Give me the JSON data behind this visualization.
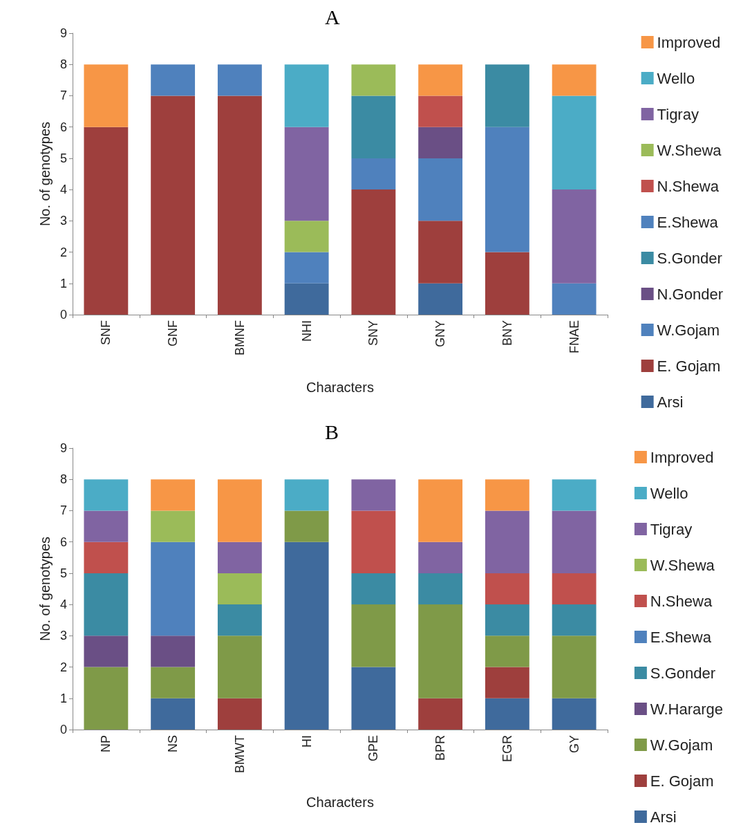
{
  "chart_data": [
    {
      "type": "bar",
      "title": "A",
      "xlabel": "Characters",
      "ylabel": "No. of genotypes",
      "stacked": true,
      "legend": "right",
      "grid": false,
      "ylim": [
        0,
        9
      ],
      "yticks": [
        0,
        1,
        2,
        3,
        4,
        5,
        6,
        7,
        8,
        9
      ],
      "categories": [
        "SNF",
        "GNF",
        "BMNF",
        "NHI",
        "SNY",
        "GNY",
        "BNY",
        "FNAE"
      ],
      "series": [
        {
          "name": "Arsi",
          "color": "#3f6a9c",
          "values": [
            0,
            0,
            0,
            1,
            0,
            1,
            0,
            0
          ]
        },
        {
          "name": "E. Gojam",
          "color": "#9e3f3d",
          "values": [
            6,
            7,
            7,
            0,
            4,
            2,
            2,
            0
          ]
        },
        {
          "name": "W.Gojam",
          "color": "#4f81bd",
          "values": [
            0,
            1,
            1,
            1,
            1,
            2,
            4,
            1
          ]
        },
        {
          "name": "N.Gonder",
          "color": "#6a4f85",
          "values": [
            0,
            0,
            0,
            0,
            0,
            1,
            0,
            0
          ]
        },
        {
          "name": "S.Gonder",
          "color": "#3b8ba3",
          "values": [
            0,
            0,
            0,
            0,
            2,
            0,
            2,
            0
          ]
        },
        {
          "name": "E.Shewa",
          "color": "#4f81bd",
          "values": [
            0,
            0,
            0,
            0,
            0,
            0,
            0,
            0
          ]
        },
        {
          "name": "N.Shewa",
          "color": "#c0504d",
          "values": [
            0,
            0,
            0,
            0,
            0,
            1,
            0,
            0
          ]
        },
        {
          "name": "W.Shewa",
          "color": "#9bbb59",
          "values": [
            0,
            0,
            0,
            1,
            1,
            0,
            0,
            0
          ]
        },
        {
          "name": "Tigray",
          "color": "#8064a2",
          "values": [
            0,
            0,
            0,
            3,
            0,
            0,
            0,
            3
          ]
        },
        {
          "name": "Wello",
          "color": "#4bacc6",
          "values": [
            0,
            0,
            0,
            2,
            0,
            0,
            0,
            3
          ]
        },
        {
          "name": "Improved",
          "color": "#f79646",
          "values": [
            2,
            0,
            0,
            0,
            0,
            1,
            0,
            1
          ]
        }
      ]
    },
    {
      "type": "bar",
      "title": "B",
      "xlabel": "Characters",
      "ylabel": "No. of genotypes",
      "stacked": true,
      "legend": "right",
      "grid": false,
      "ylim": [
        0,
        9
      ],
      "yticks": [
        0,
        1,
        2,
        3,
        4,
        5,
        6,
        7,
        8,
        9
      ],
      "categories": [
        "NP",
        "NS",
        "BMWT",
        "HI",
        "GPE",
        "BPR",
        "EGR",
        "GY"
      ],
      "series": [
        {
          "name": "Arsi",
          "color": "#3f6a9c",
          "values": [
            0,
            1,
            0,
            6,
            2,
            0,
            1,
            1
          ]
        },
        {
          "name": "E. Gojam",
          "color": "#9e3f3d",
          "values": [
            0,
            0,
            1,
            0,
            0,
            1,
            1,
            0
          ]
        },
        {
          "name": "W.Gojam",
          "color": "#7f9a48",
          "values": [
            2,
            1,
            2,
            1,
            2,
            3,
            1,
            2
          ]
        },
        {
          "name": "W.Hararge",
          "color": "#6a4f85",
          "values": [
            1,
            1,
            0,
            0,
            0,
            0,
            0,
            0
          ]
        },
        {
          "name": "S.Gonder",
          "color": "#3b8ba3",
          "values": [
            2,
            0,
            1,
            0,
            1,
            1,
            1,
            1
          ]
        },
        {
          "name": "E.Shewa",
          "color": "#4f81bd",
          "values": [
            0,
            3,
            0,
            0,
            0,
            0,
            0,
            0
          ]
        },
        {
          "name": "N.Shewa",
          "color": "#c0504d",
          "values": [
            1,
            0,
            0,
            0,
            2,
            0,
            1,
            1
          ]
        },
        {
          "name": "W.Shewa",
          "color": "#9bbb59",
          "values": [
            0,
            1,
            1,
            0,
            0,
            0,
            0,
            0
          ]
        },
        {
          "name": "Tigray",
          "color": "#8064a2",
          "values": [
            1,
            0,
            1,
            0,
            1,
            1,
            2,
            2
          ]
        },
        {
          "name": "Wello",
          "color": "#4bacc6",
          "values": [
            1,
            0,
            0,
            1,
            0,
            0,
            0,
            1
          ]
        },
        {
          "name": "Improved",
          "color": "#f79646",
          "values": [
            0,
            1,
            2,
            0,
            0,
            2,
            1,
            0
          ]
        }
      ]
    }
  ]
}
